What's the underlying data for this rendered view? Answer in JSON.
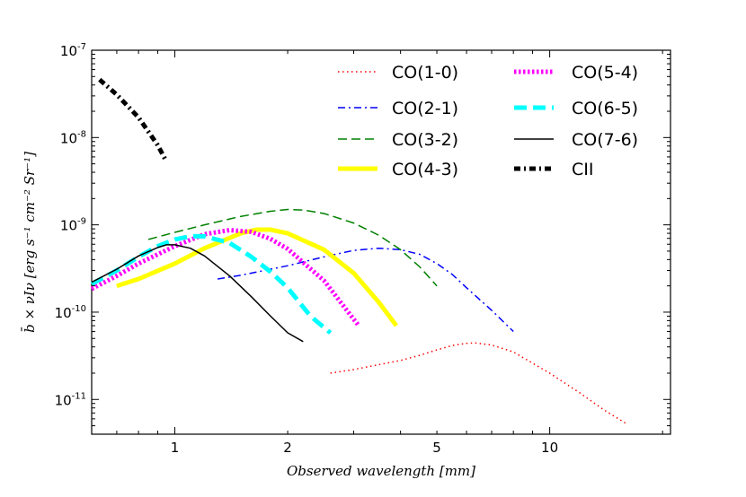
{
  "chart_data": {
    "type": "line",
    "title": "",
    "xlabel": "Observed wavelength [mm]",
    "ylabel": "b̄ × νIν [erg s⁻¹ cm⁻² Sr⁻¹]",
    "xscale": "log",
    "yscale": "log",
    "xlim": [
      0.6,
      21
    ],
    "ylim": [
      4e-12,
      1e-07
    ],
    "grid": false,
    "legend_position": "top-right",
    "x_ticks": [
      {
        "value": 1,
        "label": "1"
      },
      {
        "value": 2,
        "label": "2"
      },
      {
        "value": 5,
        "label": "5"
      },
      {
        "value": 10,
        "label": "10"
      }
    ],
    "y_ticks": [
      {
        "value": 1e-11,
        "base": "10",
        "exp": "-11"
      },
      {
        "value": 1e-10,
        "base": "10",
        "exp": "-10"
      },
      {
        "value": 1e-09,
        "base": "10",
        "exp": "-9"
      },
      {
        "value": 1e-08,
        "base": "10",
        "exp": "-8"
      },
      {
        "value": 1e-07,
        "base": "10",
        "exp": "-7"
      }
    ],
    "series": [
      {
        "name": "CO(1-0)",
        "color": "#ff0000",
        "style": "dotted",
        "width": 1.5,
        "x": [
          2.6,
          3.0,
          3.5,
          4.0,
          4.5,
          5.0,
          5.5,
          6.0,
          6.3,
          7.0,
          8.0,
          10.0,
          12.0,
          14.0,
          16.0
        ],
        "y": [
          2e-11,
          2.2e-11,
          2.5e-11,
          2.8e-11,
          3.2e-11,
          3.7e-11,
          4.15e-11,
          4.4e-11,
          4.45e-11,
          4.2e-11,
          3.5e-11,
          2e-11,
          1.2e-11,
          7.5e-12,
          5.3e-12
        ]
      },
      {
        "name": "CO(2-1)",
        "color": "#0000ff",
        "style": "dashdot",
        "width": 1.5,
        "x": [
          1.3,
          1.5,
          2.0,
          2.5,
          3.0,
          3.5,
          4.0,
          4.5,
          5.0,
          5.5,
          6.0,
          7.0,
          8.0
        ],
        "y": [
          2.4e-10,
          2.65e-10,
          3.4e-10,
          4.3e-10,
          5.1e-10,
          5.4e-10,
          5.2e-10,
          4.6e-10,
          3.6e-10,
          2.7e-10,
          1.9e-10,
          1.05e-10,
          6e-11
        ]
      },
      {
        "name": "CO(3-2)",
        "color": "#008000",
        "style": "dashed",
        "width": 1.5,
        "x": [
          0.85,
          1.0,
          1.2,
          1.5,
          1.8,
          2.0,
          2.2,
          2.5,
          3.0,
          3.5,
          4.0,
          4.5,
          5.0
        ],
        "y": [
          6.8e-10,
          8.2e-10,
          1e-09,
          1.25e-09,
          1.43e-09,
          1.5e-09,
          1.48e-09,
          1.35e-09,
          1.05e-09,
          7.6e-10,
          5.2e-10,
          3.3e-10,
          2e-10
        ]
      },
      {
        "name": "CO(4-3)",
        "color": "#ffff00",
        "style": "solid",
        "width": 5,
        "x": [
          0.7,
          0.8,
          1.0,
          1.2,
          1.5,
          1.65,
          1.8,
          2.0,
          2.5,
          3.0,
          3.5,
          3.9
        ],
        "y": [
          2e-10,
          2.4e-10,
          3.6e-10,
          5.4e-10,
          8e-10,
          8.8e-10,
          8.8e-10,
          8e-10,
          5.2e-10,
          2.8e-10,
          1.3e-10,
          7e-11
        ]
      },
      {
        "name": "CO(5-4)",
        "color": "#ff00ff",
        "style": "dotted",
        "width": 5,
        "x": [
          0.6,
          0.7,
          0.8,
          1.0,
          1.2,
          1.4,
          1.6,
          1.8,
          2.0,
          2.5,
          3.1
        ],
        "y": [
          1.85e-10,
          2.6e-10,
          3.6e-10,
          5.7e-10,
          7.8e-10,
          8.7e-10,
          8.3e-10,
          6.9e-10,
          5.3e-10,
          2.3e-10,
          6.9e-11
        ]
      },
      {
        "name": "CO(6-5)",
        "color": "#00ffff",
        "style": "dashed",
        "width": 5,
        "x": [
          0.6,
          0.7,
          0.8,
          0.9,
          1.0,
          1.1,
          1.2,
          1.4,
          1.6,
          1.8,
          2.0,
          2.3,
          2.6
        ],
        "y": [
          2.1e-10,
          3e-10,
          4.3e-10,
          5.7e-10,
          6.8e-10,
          7.4e-10,
          7.4e-10,
          6.2e-10,
          4.3e-10,
          2.9e-10,
          1.9e-10,
          9e-11,
          5.8e-11
        ]
      },
      {
        "name": "CO(7-6)",
        "color": "#000000",
        "style": "solid",
        "width": 1.5,
        "x": [
          0.6,
          0.7,
          0.8,
          0.9,
          0.95,
          1.0,
          1.1,
          1.2,
          1.4,
          1.6,
          1.8,
          2.0,
          2.2
        ],
        "y": [
          2.2e-10,
          3.1e-10,
          4.4e-10,
          5.5e-10,
          5.9e-10,
          5.9e-10,
          5.4e-10,
          4.4e-10,
          2.6e-10,
          1.5e-10,
          9e-11,
          5.8e-11,
          4.6e-11
        ]
      },
      {
        "name": "CII",
        "color": "#000000",
        "style": "dashdot",
        "width": 5,
        "x": [
          0.63,
          0.7,
          0.8,
          0.9,
          0.95
        ],
        "y": [
          4.6e-08,
          3.1e-08,
          1.7e-08,
          8.2e-09,
          5.3e-09
        ]
      }
    ]
  }
}
